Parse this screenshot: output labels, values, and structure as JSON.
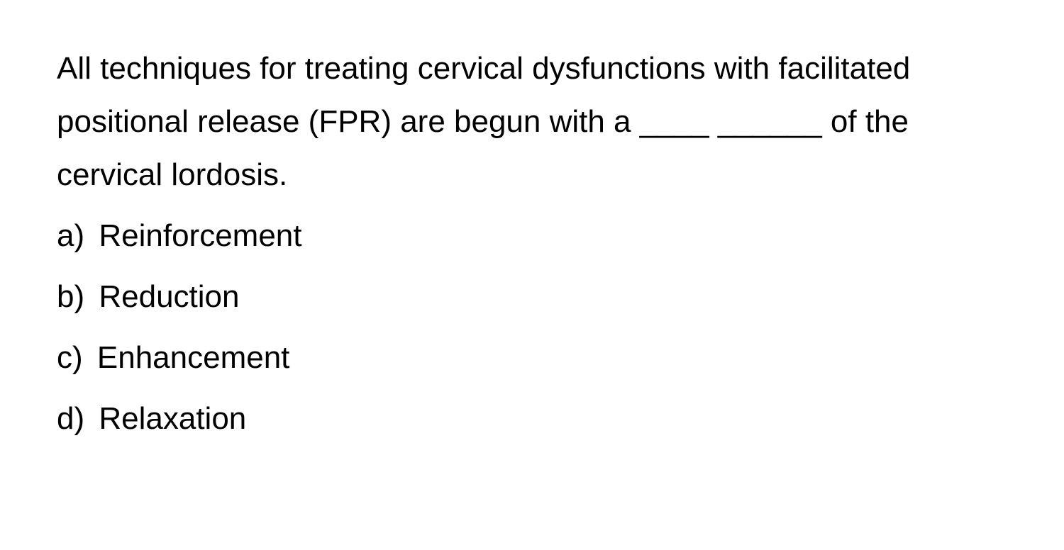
{
  "question": {
    "stem": "All techniques for treating cervical dysfunctions with facilitated positional release (FPR) are begun with a ____ ______ of the cervical lordosis.",
    "options": [
      {
        "label": "a)",
        "text": "Reinforcement"
      },
      {
        "label": "b)",
        "text": "Reduction"
      },
      {
        "label": "c)",
        "text": "Enhancement"
      },
      {
        "label": "d)",
        "text": "Relaxation"
      }
    ]
  },
  "styling": {
    "font_size_pt": 33,
    "line_height": 1.7,
    "text_color": "#000000",
    "background_color": "#ffffff",
    "font_weight": 400,
    "font_family": "system-sans"
  }
}
